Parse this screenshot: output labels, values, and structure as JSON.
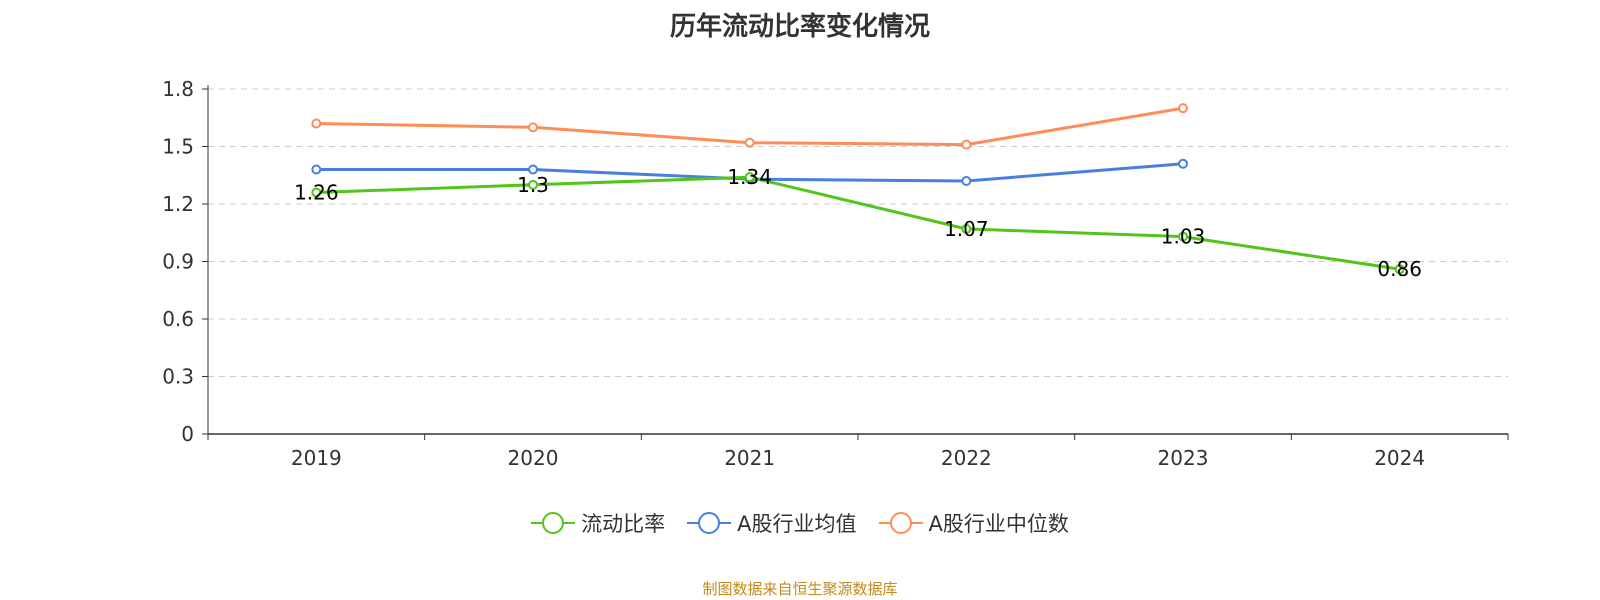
{
  "chart_data": {
    "type": "line",
    "title": "历年流动比率变化情况",
    "categories": [
      "2019",
      "2020",
      "2021",
      "2022",
      "2023",
      "2024"
    ],
    "ylim": [
      0,
      1.8
    ],
    "yticks": [
      "0",
      "0.3",
      "0.6",
      "0.9",
      "1.2",
      "1.5",
      "1.8"
    ],
    "grid": true,
    "legend_position": "bottom",
    "series": [
      {
        "name": "流动比率",
        "color": "#52c41a",
        "values": [
          1.26,
          1.3,
          1.34,
          1.07,
          1.03,
          0.86
        ],
        "labels": [
          "1.26",
          "1.3",
          "1.34",
          "1.07",
          "1.03",
          "0.86"
        ]
      },
      {
        "name": "A股行业均值",
        "color": "#4a7fe0",
        "values": [
          1.38,
          1.38,
          1.33,
          1.32,
          1.41,
          null
        ]
      },
      {
        "name": "A股行业中位数",
        "color": "#ff8c55",
        "values": [
          1.62,
          1.6,
          1.52,
          1.51,
          1.7,
          null
        ]
      }
    ]
  },
  "footer": {
    "source": "制图数据来自恒生聚源数据库"
  }
}
